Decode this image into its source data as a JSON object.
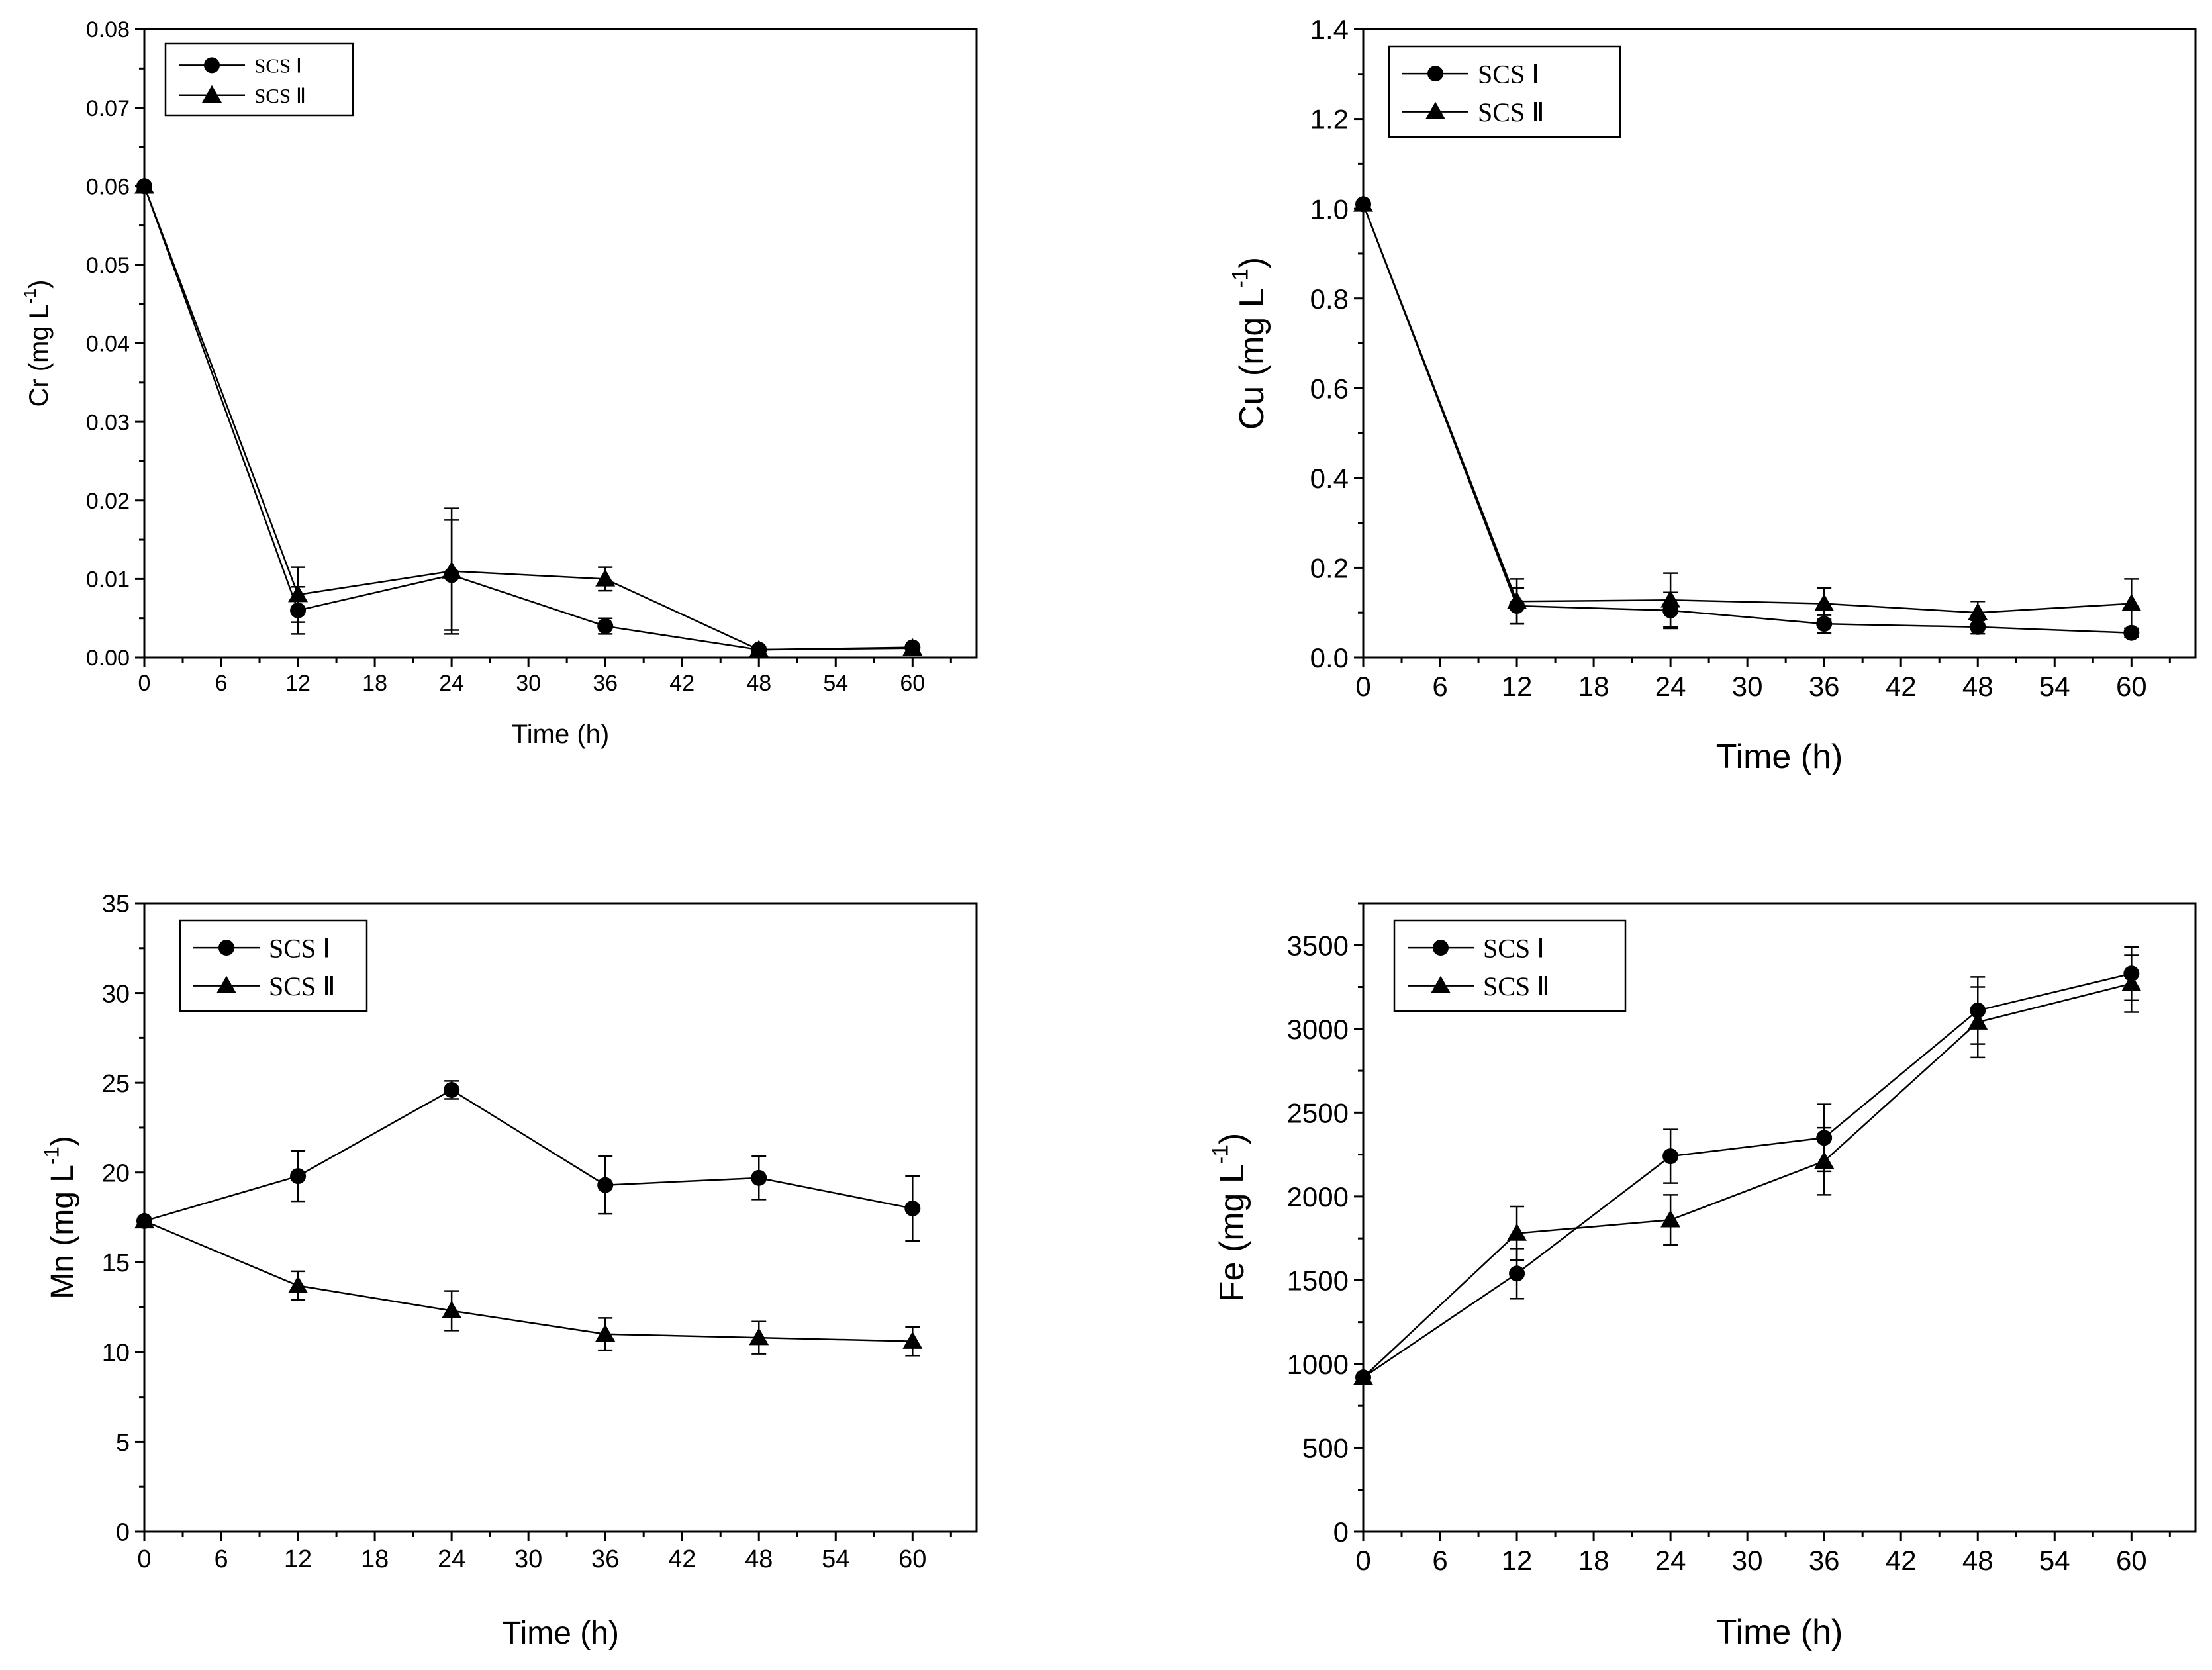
{
  "figure": {
    "colors": {
      "marker": "#000000",
      "line": "#000000",
      "background": "#ffffff"
    }
  },
  "chart_data": [
    {
      "type": "line",
      "ylabel": "Cr (mg L",
      "ylabel_sup": "-1",
      "xlabel": "Time (h)",
      "xlim": [
        0,
        65
      ],
      "ylim": [
        0,
        0.08
      ],
      "xticks": [
        0,
        6,
        12,
        18,
        24,
        30,
        36,
        42,
        48,
        54,
        60
      ],
      "yticks": [
        0,
        0.01,
        0.02,
        0.03,
        0.04,
        0.05,
        0.06,
        0.07,
        0.08
      ],
      "ytick_labels": [
        "0.00",
        "0.01",
        "0.02",
        "0.03",
        "0.04",
        "0.05",
        "0.06",
        "0.07",
        "0.08"
      ],
      "legend": [
        "SCS Ⅰ",
        "SCS Ⅱ"
      ],
      "legend_position": "top-left",
      "series": [
        {
          "name": "SCS Ⅰ",
          "marker": "circle",
          "x": [
            0,
            12,
            24,
            36,
            48,
            60
          ],
          "y": [
            0.06,
            0.006,
            0.0105,
            0.004,
            0.001,
            0.0013
          ],
          "err": [
            0,
            0.003,
            0.007,
            0.001,
            0.0003,
            0.0003
          ]
        },
        {
          "name": "SCS Ⅱ",
          "marker": "triangle",
          "x": [
            0,
            12,
            24,
            36,
            48,
            60
          ],
          "y": [
            0.06,
            0.008,
            0.011,
            0.01,
            0.001,
            0.0012
          ],
          "err": [
            0,
            0.0035,
            0.008,
            0.0015,
            0.0003,
            0.0003
          ]
        }
      ]
    },
    {
      "type": "line",
      "ylabel": "Cu (mg L",
      "ylabel_sup": "-1",
      "xlabel": "Time (h)",
      "xlim": [
        0,
        65
      ],
      "ylim": [
        0,
        1.4
      ],
      "xticks": [
        0,
        6,
        12,
        18,
        24,
        30,
        36,
        42,
        48,
        54,
        60
      ],
      "yticks": [
        0,
        0.2,
        0.4,
        0.6,
        0.8,
        1.0,
        1.2,
        1.4
      ],
      "ytick_labels": [
        "0.0",
        "0.2",
        "0.4",
        "0.6",
        "0.8",
        "1.0",
        "1.2",
        "1.4"
      ],
      "legend": [
        "SCS Ⅰ",
        "SCS Ⅱ"
      ],
      "legend_position": "top-left",
      "series": [
        {
          "name": "SCS Ⅰ",
          "marker": "circle",
          "x": [
            0,
            12,
            24,
            36,
            48,
            60
          ],
          "y": [
            1.01,
            0.115,
            0.105,
            0.075,
            0.068,
            0.055
          ],
          "err": [
            0,
            0.04,
            0.04,
            0.02,
            0.015,
            0.01
          ]
        },
        {
          "name": "SCS Ⅱ",
          "marker": "triangle",
          "x": [
            0,
            12,
            24,
            36,
            48,
            60
          ],
          "y": [
            1.01,
            0.125,
            0.128,
            0.12,
            0.1,
            0.12
          ],
          "err": [
            0,
            0.05,
            0.06,
            0.035,
            0.025,
            0.055
          ]
        }
      ]
    },
    {
      "type": "line",
      "ylabel": "Mn (mg L",
      "ylabel_sup": "-1",
      "xlabel": "Time (h)",
      "xlim": [
        0,
        65
      ],
      "ylim": [
        0,
        35
      ],
      "xticks": [
        0,
        6,
        12,
        18,
        24,
        30,
        36,
        42,
        48,
        54,
        60
      ],
      "yticks": [
        0,
        5,
        10,
        15,
        20,
        25,
        30,
        35
      ],
      "ytick_labels": [
        "0",
        "5",
        "10",
        "15",
        "20",
        "25",
        "30",
        "35"
      ],
      "legend": [
        "SCS Ⅰ",
        "SCS Ⅱ"
      ],
      "legend_position": "top-left",
      "series": [
        {
          "name": "SCS Ⅰ",
          "marker": "circle",
          "x": [
            0,
            12,
            24,
            36,
            48,
            60
          ],
          "y": [
            17.3,
            19.8,
            24.6,
            19.3,
            19.7,
            18.0
          ],
          "err": [
            0,
            1.4,
            0.5,
            1.6,
            1.2,
            1.8
          ]
        },
        {
          "name": "SCS Ⅱ",
          "marker": "triangle",
          "x": [
            0,
            12,
            24,
            36,
            48,
            60
          ],
          "y": [
            17.3,
            13.7,
            12.3,
            11.0,
            10.8,
            10.6
          ],
          "err": [
            0,
            0.8,
            1.1,
            0.9,
            0.9,
            0.8
          ]
        }
      ]
    },
    {
      "type": "line",
      "ylabel": "Fe (mg L",
      "ylabel_sup": "-1",
      "xlabel": "Time (h)",
      "xlim": [
        0,
        65
      ],
      "ylim": [
        0,
        3750
      ],
      "xticks": [
        0,
        6,
        12,
        18,
        24,
        30,
        36,
        42,
        48,
        54,
        60
      ],
      "yticks": [
        0,
        500,
        1000,
        1500,
        2000,
        2500,
        3000,
        3500
      ],
      "ytick_labels": [
        "0",
        "500",
        "1000",
        "1500",
        "2000",
        "2500",
        "3000",
        "3500"
      ],
      "legend": [
        "SCS Ⅰ",
        "SCS Ⅱ"
      ],
      "legend_position": "top-left",
      "series": [
        {
          "name": "SCS Ⅰ",
          "marker": "circle",
          "x": [
            0,
            12,
            24,
            36,
            48,
            60
          ],
          "y": [
            920,
            1540,
            2240,
            2350,
            3110,
            3330
          ],
          "err": [
            0,
            150,
            160,
            200,
            200,
            160
          ]
        },
        {
          "name": "SCS Ⅱ",
          "marker": "triangle",
          "x": [
            0,
            12,
            24,
            36,
            48,
            60
          ],
          "y": [
            920,
            1780,
            1860,
            2210,
            3040,
            3270
          ],
          "err": [
            0,
            160,
            150,
            200,
            210,
            170
          ]
        }
      ]
    }
  ]
}
